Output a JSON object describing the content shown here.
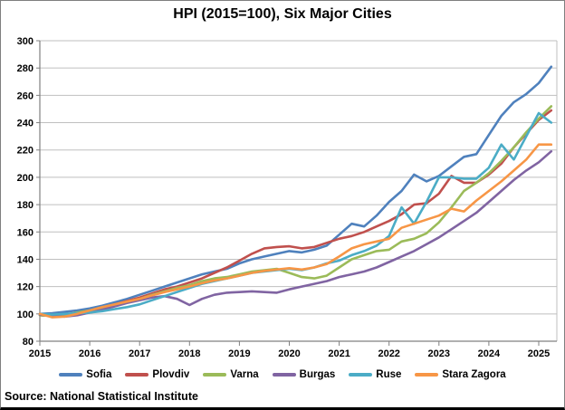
{
  "title": "HPI (2015=100), Six Major Cities",
  "source": "Source: National Statistical Institute",
  "chart_data": {
    "type": "line",
    "title": "HPI (2015=100), Six Major Cities",
    "x_unit": "quarter",
    "x_start": "2015Q1",
    "x_end": "2025Q2",
    "x_tick_labels": [
      "2015",
      "2016",
      "2017",
      "2018",
      "2019",
      "2020",
      "2021",
      "2022",
      "2023",
      "2024",
      "2025"
    ],
    "y_axis": {
      "min": 80,
      "max": 300,
      "step": 20,
      "tick_labels": [
        "80",
        "100",
        "120",
        "140",
        "160",
        "180",
        "200",
        "220",
        "240",
        "260",
        "280",
        "300"
      ]
    },
    "grid": true,
    "legend_position": "bottom",
    "series": [
      {
        "name": "Sofia",
        "color": "#4F81BD",
        "values": [
          100,
          100.5,
          101.5,
          102.5,
          104,
          106,
          108.5,
          111,
          114,
          117,
          120,
          123,
          126,
          129,
          131,
          133,
          137,
          140,
          142,
          144,
          146,
          145,
          147,
          150,
          158,
          166,
          164,
          172,
          182,
          190,
          202,
          197,
          201,
          208,
          215,
          217,
          231,
          245,
          255,
          261,
          269,
          281
        ]
      },
      {
        "name": "Plovdiv",
        "color": "#C0504D",
        "values": [
          99,
          98.5,
          99,
          100.5,
          102,
          104.5,
          107,
          109.5,
          112,
          115,
          118,
          120,
          123,
          126,
          130,
          134,
          139,
          144,
          148,
          149,
          149.5,
          148,
          149,
          152,
          155,
          157,
          160,
          164,
          168,
          173,
          180,
          181,
          188,
          201,
          196,
          196,
          202,
          210,
          222,
          232,
          242,
          249
        ]
      },
      {
        "name": "Varna",
        "color": "#9BBB59",
        "values": [
          99,
          98.5,
          99.5,
          101,
          102.5,
          104,
          106,
          108.5,
          111,
          114,
          116.5,
          119,
          121,
          124,
          126,
          127,
          129,
          131,
          132,
          133,
          130,
          127,
          126,
          128,
          134,
          140,
          143,
          146,
          147,
          153,
          155,
          159,
          167,
          178,
          190,
          196,
          203,
          212,
          222,
          233,
          243,
          252
        ]
      },
      {
        "name": "Burgas",
        "color": "#8064A2",
        "values": [
          99.5,
          98.5,
          98,
          99,
          101,
          103,
          105.5,
          108,
          110,
          112,
          113,
          111,
          106.5,
          111,
          114,
          115.5,
          116,
          116.5,
          116,
          115.5,
          118,
          120,
          122,
          124,
          127,
          129,
          131,
          134,
          138,
          142,
          146,
          151,
          156,
          162,
          168,
          174,
          182,
          190,
          198,
          205,
          211,
          219
        ]
      },
      {
        "name": "Ruse",
        "color": "#4BACC6",
        "values": [
          100,
          99.5,
          100,
          100.5,
          101,
          102,
          103.5,
          105,
          107,
          110,
          113,
          116,
          119,
          122,
          124,
          126,
          128,
          130,
          131,
          132,
          133,
          132,
          134,
          137,
          139,
          143,
          146,
          150,
          157,
          178,
          166,
          182,
          200,
          200,
          199,
          199,
          207,
          224,
          213,
          230,
          247,
          240
        ]
      },
      {
        "name": "Stara Zagora",
        "color": "#F79646",
        "values": [
          100,
          97.5,
          98,
          100,
          102.5,
          105,
          107,
          109,
          111,
          113.5,
          116,
          118,
          120,
          122.5,
          124.5,
          126,
          128,
          130,
          131.5,
          132.5,
          133.5,
          132.5,
          134,
          136.5,
          142,
          148,
          151,
          153,
          155,
          163,
          166,
          169,
          172,
          177,
          175,
          183,
          190,
          197,
          205,
          213,
          224,
          224
        ]
      }
    ]
  }
}
